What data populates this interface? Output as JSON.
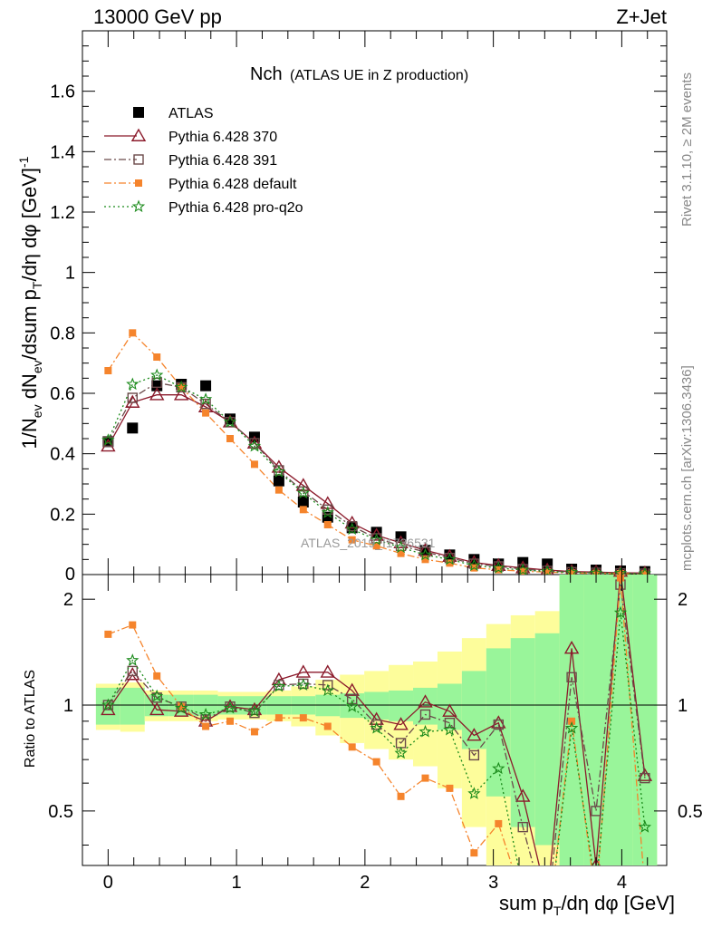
{
  "header": {
    "energy_label": "13000 GeV pp",
    "process_label": "Z+Jet"
  },
  "plot_title": {
    "main": "Nch",
    "sub": "(ATLAS UE in Z production)"
  },
  "side_text": {
    "rivet": "Rivet 3.1.10, ≥ 2M events",
    "source": "mcplots.cern.ch [arXiv:1306.3436]"
  },
  "watermark": "ATLAS_2019_I1736531",
  "ratio_ylabel": "Ratio to ATLAS",
  "colors": {
    "atlas": "#000000",
    "p370": "#8b1a2b",
    "p391": "#6b4a4a",
    "pdefault": "#f5842c",
    "pq2o": "#1a8a1a",
    "band_green": "#99f59a",
    "band_yellow": "#fdfd9b"
  },
  "chart_data": [
    {
      "type": "scatter",
      "panel": "main",
      "ylabel": "1/N_ev dN_ev/dsum p_T/dη dφ [GeV]^-1",
      "xlabel": "sum p_T/dη dφ [GeV]",
      "xlim": [
        -0.2,
        4.35
      ],
      "ylim": [
        0,
        1.8
      ],
      "xticks": [
        "0",
        "1",
        "2",
        "3",
        "4"
      ],
      "yticks": [
        "0.2",
        "0.4",
        "0.6",
        "0.8",
        "1",
        "1.2",
        "1.4",
        "1.6"
      ],
      "legend_position": "top-left",
      "x": [
        0.0,
        0.19,
        0.38,
        0.57,
        0.76,
        0.95,
        1.14,
        1.33,
        1.52,
        1.71,
        1.9,
        2.09,
        2.28,
        2.47,
        2.66,
        2.85,
        3.04,
        3.23,
        3.42,
        3.61,
        3.8,
        3.99,
        4.18
      ],
      "series": [
        {
          "name": "ATLAS",
          "marker": "square",
          "values": [
            0.44,
            0.485,
            0.625,
            0.63,
            0.625,
            0.515,
            0.455,
            0.31,
            0.24,
            0.19,
            0.155,
            0.14,
            0.125,
            0.08,
            0.065,
            0.05,
            0.035,
            0.04,
            0.035,
            0.018,
            0.015,
            0.012,
            0.01
          ]
        },
        {
          "name": "Pythia 6.428 370",
          "marker": "triangle",
          "line": "solid",
          "values": [
            0.425,
            0.57,
            0.595,
            0.595,
            0.555,
            0.505,
            0.435,
            0.355,
            0.295,
            0.235,
            0.17,
            0.13,
            0.105,
            0.08,
            0.06,
            0.04,
            0.03,
            0.022,
            0.015,
            0.01,
            0.008,
            0.006,
            0.005
          ]
        },
        {
          "name": "Pythia 6.428 391",
          "marker": "open-square",
          "line": "dashdot",
          "values": [
            0.44,
            0.585,
            0.635,
            0.62,
            0.565,
            0.505,
            0.435,
            0.345,
            0.275,
            0.215,
            0.16,
            0.12,
            0.095,
            0.075,
            0.055,
            0.036,
            0.027,
            0.018,
            0.012,
            0.008,
            0.006,
            0.004,
            0.003
          ]
        },
        {
          "name": "Pythia 6.428 default",
          "marker": "small-square",
          "line": "dashdot",
          "values": [
            0.675,
            0.8,
            0.72,
            0.62,
            0.535,
            0.45,
            0.365,
            0.28,
            0.215,
            0.165,
            0.115,
            0.095,
            0.07,
            0.05,
            0.038,
            0.022,
            0.016,
            0.011,
            0.008,
            0.005,
            0.004,
            0.003,
            0.002
          ]
        },
        {
          "name": "Pythia 6.428 pro-q2o",
          "marker": "star",
          "line": "dotted",
          "values": [
            0.445,
            0.63,
            0.66,
            0.62,
            0.58,
            0.505,
            0.425,
            0.34,
            0.27,
            0.205,
            0.15,
            0.115,
            0.09,
            0.065,
            0.05,
            0.03,
            0.022,
            0.015,
            0.01,
            0.007,
            0.005,
            0.004,
            0.003
          ]
        }
      ]
    },
    {
      "type": "line",
      "panel": "ratio",
      "ylabel": "Ratio to ATLAS",
      "xlim": [
        -0.2,
        4.35
      ],
      "ylim": [
        0.35,
        2.35
      ],
      "yticks": [
        "0.5",
        "1",
        "2"
      ],
      "x": [
        0.0,
        0.19,
        0.38,
        0.57,
        0.76,
        0.95,
        1.14,
        1.33,
        1.52,
        1.71,
        1.9,
        2.09,
        2.28,
        2.47,
        2.66,
        2.85,
        3.04,
        3.23,
        3.42,
        3.61,
        3.8,
        3.99,
        4.18
      ],
      "bands": {
        "green_halfwidth": [
          0.12,
          0.12,
          0.07,
          0.07,
          0.07,
          0.06,
          0.06,
          0.06,
          0.06,
          0.07,
          0.08,
          0.09,
          0.1,
          0.12,
          0.15,
          0.25,
          0.45,
          0.55,
          0.6,
          1.4,
          1.4,
          1.4,
          1.4
        ],
        "yellow_halfwidth": [
          0.15,
          0.16,
          0.1,
          0.1,
          0.1,
          0.09,
          0.09,
          0.1,
          0.13,
          0.18,
          0.22,
          0.25,
          0.3,
          0.33,
          0.42,
          0.55,
          0.7,
          0.8,
          0.85,
          1.4,
          1.4,
          1.4,
          1.4
        ]
      },
      "series": [
        {
          "name": "Pythia 6.428 370",
          "values": [
            0.97,
            1.22,
            0.97,
            0.96,
            0.9,
            0.99,
            0.97,
            1.18,
            1.24,
            1.24,
            1.1,
            0.91,
            0.88,
            1.02,
            0.96,
            0.82,
            0.89,
            0.55,
            0.28,
            1.45,
            0.35,
            2.4,
            0.63
          ]
        },
        {
          "name": "Pythia 6.428 391",
          "values": [
            1.0,
            1.25,
            1.05,
            0.99,
            0.91,
            0.99,
            0.95,
            1.14,
            1.15,
            1.14,
            1.04,
            0.88,
            0.78,
            0.94,
            0.89,
            0.72,
            0.88,
            0.45,
            0.25,
            1.2,
            0.5,
            2.2,
            0.62
          ]
        },
        {
          "name": "Pythia 6.428 default",
          "values": [
            1.59,
            1.69,
            1.21,
            0.99,
            0.87,
            0.9,
            0.84,
            0.92,
            0.92,
            0.87,
            0.76,
            0.69,
            0.55,
            0.62,
            0.58,
            0.38,
            0.46,
            0.28,
            0.22,
            0.9,
            0.28,
            2.3,
            0.3
          ]
        },
        {
          "name": "Pythia 6.428 pro-q2o",
          "values": [
            1.0,
            1.34,
            1.06,
            0.98,
            0.94,
            0.98,
            0.96,
            1.13,
            1.14,
            1.1,
            0.99,
            0.86,
            0.73,
            0.84,
            0.85,
            0.56,
            0.66,
            0.3,
            0.22,
            0.86,
            0.3,
            1.83,
            0.45
          ]
        }
      ]
    }
  ]
}
